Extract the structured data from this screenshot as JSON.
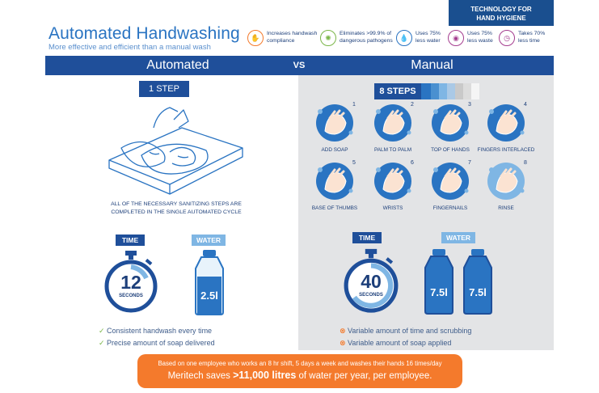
{
  "header": {
    "title": "Automated Handwashing",
    "subtitle": "More effective and efficient than a manual wash",
    "badge_line1": "TECHNOLOGY FOR",
    "badge_line2": "HAND HYGIENE"
  },
  "stats": [
    {
      "icon": "hand-icon",
      "line1": "Increases handwash",
      "line2": "compliance",
      "color": "#f47a2c"
    },
    {
      "icon": "germ-icon",
      "line1": "Eliminates >99.9% of",
      "line2": "dangerous pathogens",
      "color": "#7ab648"
    },
    {
      "icon": "water-drop-icon",
      "line1": "Uses 75%",
      "line2": "less water",
      "color": "#2a74c2"
    },
    {
      "icon": "soap-icon",
      "line1": "Uses 75%",
      "line2": "less waste",
      "color": "#a43d8f"
    },
    {
      "icon": "clock-icon",
      "line1": "Takes 70%",
      "line2": "less time",
      "color": "#a43d8f"
    }
  ],
  "bar": {
    "left": "Automated",
    "vs": "VS",
    "right": "Manual"
  },
  "automated": {
    "step_label": "1 STEP",
    "note_line1": "ALL OF THE NECESSARY SANITIZING STEPS ARE",
    "note_line2": "COMPLETED IN THE SINGLE AUTOMATED CYCLE",
    "time_label": "TIME",
    "water_label": "WATER",
    "seconds_value": "12",
    "seconds_label": "SECONDS",
    "water_value": "2.5l",
    "benefits": [
      "Consistent handwash every time",
      "Precise amount of soap delivered"
    ]
  },
  "manual": {
    "step_label": "8 STEPS",
    "steps": [
      {
        "n": "1",
        "label": "ADD SOAP"
      },
      {
        "n": "2",
        "label": "PALM TO PALM"
      },
      {
        "n": "3",
        "label": "TOP OF HANDS"
      },
      {
        "n": "4",
        "label": "FINGERS INTERLACED"
      },
      {
        "n": "5",
        "label": "BASE OF THUMBS"
      },
      {
        "n": "6",
        "label": "WRISTS"
      },
      {
        "n": "7",
        "label": "FINGERNAILS"
      },
      {
        "n": "8",
        "label": "RINSE"
      }
    ],
    "time_label": "TIME",
    "water_label": "WATER",
    "seconds_value": "40",
    "seconds_label": "SECONDS",
    "water_value_1": "7.5l",
    "water_value_2": "7.5l",
    "drawbacks": [
      "Variable amount of time and scrubbing",
      "Variable amount of soap applied"
    ]
  },
  "footer": {
    "line1": "Based on one employee who works an 8 hr shift, 5 days a week and washes their hands 16 times/day",
    "line2_pre": "Meritech saves ",
    "line2_bold": ">11,000 litres",
    "line2_post": " of water per year, per employee."
  },
  "colors": {
    "navy": "#1f4f9a",
    "blue": "#2a74c2",
    "light_blue": "#7fb6e4",
    "orange": "#f47a2c",
    "grey_panel": "#e3e4e6"
  }
}
